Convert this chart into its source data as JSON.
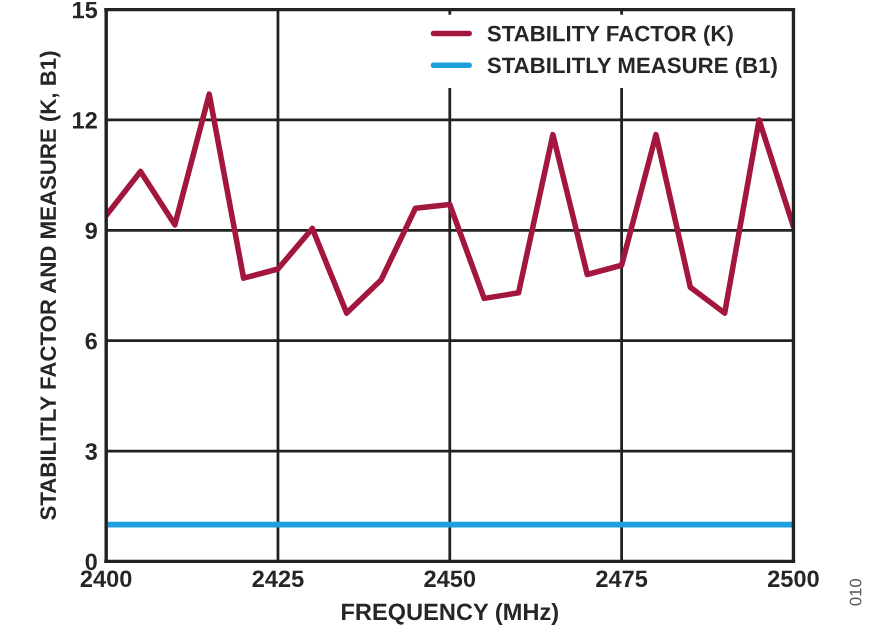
{
  "chart_data": {
    "type": "line",
    "xlabel": "FREQUENCY (MHz)",
    "ylabel": "STABILITLY FACTOR AND MEASURE (K, B1)",
    "x": [
      2400,
      2405,
      2410,
      2415,
      2420,
      2425,
      2430,
      2435,
      2440,
      2445,
      2450,
      2455,
      2460,
      2465,
      2470,
      2475,
      2480,
      2485,
      2490,
      2495,
      2500
    ],
    "series": [
      {
        "name": "STABILITY FACTOR (K)",
        "color": "#a3173f",
        "values": [
          9.4,
          10.6,
          9.15,
          12.7,
          7.7,
          7.95,
          9.05,
          6.75,
          7.65,
          9.6,
          9.7,
          7.15,
          7.3,
          11.6,
          7.8,
          8.05,
          11.6,
          7.45,
          6.75,
          12.0,
          9.1
        ]
      },
      {
        "name": "STABILITLY MEASURE (B1)",
        "color": "#1ea0dc",
        "values": [
          1,
          1,
          1,
          1,
          1,
          1,
          1,
          1,
          1,
          1,
          1,
          1,
          1,
          1,
          1,
          1,
          1,
          1,
          1,
          1,
          1
        ]
      }
    ],
    "xlim": [
      2400,
      2500
    ],
    "xticks": [
      2400,
      2425,
      2450,
      2475,
      2500
    ],
    "ylim": [
      0,
      15
    ],
    "yticks": [
      0,
      3,
      6,
      9,
      12,
      15
    ],
    "grid": true,
    "legend": "top right",
    "marker": "none",
    "line_style": "solid",
    "annotations": [
      "010"
    ]
  }
}
